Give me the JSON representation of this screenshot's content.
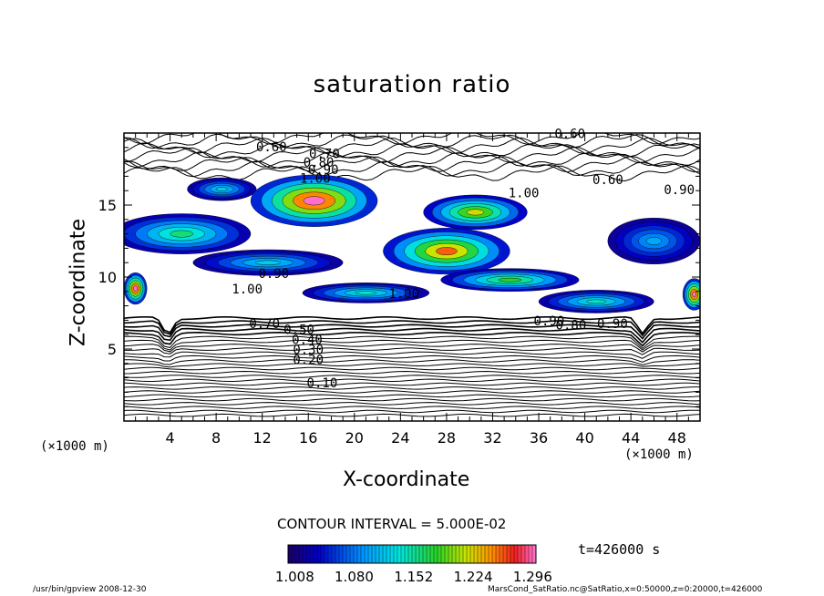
{
  "chart_data": {
    "type": "heatmap",
    "title": "saturation ratio",
    "xlabel": "X-coordinate",
    "ylabel": "Z-coordinate",
    "x_unit": "(×1000 m)",
    "xlim": [
      0,
      50
    ],
    "ylim": [
      0,
      20
    ],
    "x_ticks": [
      4,
      8,
      12,
      16,
      20,
      24,
      28,
      32,
      36,
      40,
      44,
      48
    ],
    "y_ticks": [
      5,
      10,
      15
    ],
    "contour_interval": "CONTOUR INTERVAL = 5.000E-02",
    "time_label": "t=426000 s",
    "colorbar_ticks": [
      "1.008",
      "1.080",
      "1.152",
      "1.224",
      "1.296"
    ],
    "colorbar_range": [
      1.0,
      1.3
    ],
    "contour_labels": [
      {
        "text": "0.10",
        "x": 17.2,
        "z": 2.6
      },
      {
        "text": "0.20",
        "x": 16.0,
        "z": 4.2
      },
      {
        "text": "0.30",
        "x": 16.0,
        "z": 4.9
      },
      {
        "text": "0.40",
        "x": 15.9,
        "z": 5.6
      },
      {
        "text": "0.50",
        "x": 15.2,
        "z": 6.3
      },
      {
        "text": "0.70",
        "x": 12.2,
        "z": 6.7
      },
      {
        "text": "0.90",
        "x": 36.9,
        "z": 6.9
      },
      {
        "text": "0.80",
        "x": 38.8,
        "z": 6.6
      },
      {
        "text": "0.90",
        "x": 42.4,
        "z": 6.7
      },
      {
        "text": "1.00",
        "x": 10.7,
        "z": 9.1
      },
      {
        "text": "1.00",
        "x": 24.3,
        "z": 8.8
      },
      {
        "text": "0.90",
        "x": 13.0,
        "z": 10.2
      },
      {
        "text": "1.00",
        "x": 34.7,
        "z": 15.8
      },
      {
        "text": "1.00",
        "x": 16.6,
        "z": 16.8
      },
      {
        "text": "0.90",
        "x": 17.3,
        "z": 17.4
      },
      {
        "text": "0.80",
        "x": 16.9,
        "z": 17.9
      },
      {
        "text": "0.70",
        "x": 17.4,
        "z": 18.5
      },
      {
        "text": "0.60",
        "x": 12.8,
        "z": 19.0
      },
      {
        "text": "0.60",
        "x": 38.7,
        "z": 19.9
      },
      {
        "text": "0.60",
        "x": 42.0,
        "z": 16.7
      },
      {
        "text": "0.90",
        "x": 48.2,
        "z": 16.0
      }
    ],
    "supersaturated_regions": [
      {
        "x": 8.5,
        "z": 16.1,
        "rx": 3.0,
        "rz": 0.8,
        "peak": 1.12
      },
      {
        "x": 16.5,
        "z": 15.3,
        "rx": 5.5,
        "rz": 1.8,
        "peak": 1.3
      },
      {
        "x": 5.0,
        "z": 13.0,
        "rx": 6.0,
        "rz": 1.4,
        "peak": 1.16
      },
      {
        "x": 12.5,
        "z": 11.0,
        "rx": 6.5,
        "rz": 0.9,
        "peak": 1.12
      },
      {
        "x": 21.0,
        "z": 8.9,
        "rx": 5.5,
        "rz": 0.7,
        "peak": 1.14
      },
      {
        "x": 28.0,
        "z": 11.8,
        "rx": 5.5,
        "rz": 1.6,
        "peak": 1.26
      },
      {
        "x": 30.5,
        "z": 14.5,
        "rx": 4.5,
        "rz": 1.2,
        "peak": 1.22
      },
      {
        "x": 33.5,
        "z": 9.8,
        "rx": 6.0,
        "rz": 0.8,
        "peak": 1.18
      },
      {
        "x": 41.0,
        "z": 8.3,
        "rx": 5.0,
        "rz": 0.8,
        "peak": 1.14
      },
      {
        "x": 46.0,
        "z": 12.5,
        "rx": 4.0,
        "rz": 1.6,
        "peak": 1.1
      },
      {
        "x": 1.0,
        "z": 9.2,
        "rx": 1.0,
        "rz": 1.1,
        "peak": 1.3
      },
      {
        "x": 49.5,
        "z": 8.8,
        "rx": 1.0,
        "rz": 1.1,
        "peak": 1.3
      }
    ]
  },
  "footer": {
    "left": "/usr/bin/gpview   2008-12-30",
    "right": "MarsCond_SatRatio.nc@SatRatio,x=0:50000,z=0:20000,t=426000"
  }
}
